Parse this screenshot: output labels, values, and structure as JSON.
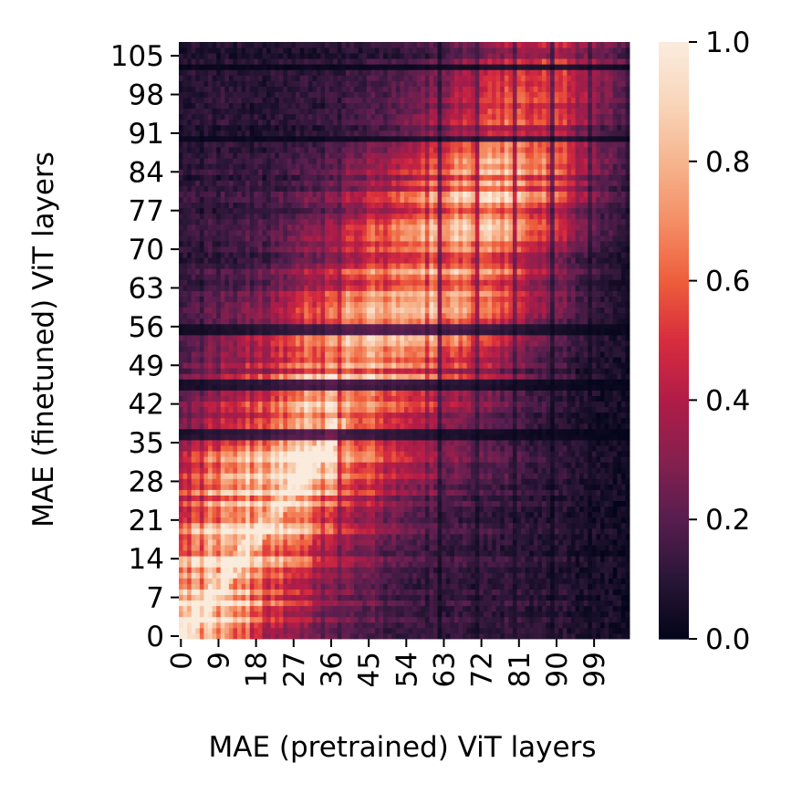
{
  "chart_data": {
    "type": "heatmap",
    "xlabel": "MAE (pretrained) ViT layers",
    "ylabel": "MAE (finetuned) ViT layers",
    "n_cols": 108,
    "n_rows": 108,
    "x_ticks": [
      "0",
      "9",
      "18",
      "27",
      "36",
      "45",
      "54",
      "63",
      "72",
      "81",
      "90",
      "99"
    ],
    "y_ticks": [
      "0",
      "7",
      "14",
      "21",
      "28",
      "35",
      "42",
      "49",
      "56",
      "63",
      "70",
      "77",
      "84",
      "91",
      "98",
      "105"
    ],
    "colorbar": {
      "vmin": 0.0,
      "vmax": 1.0,
      "ticks": [
        "0.0",
        "0.2",
        "0.4",
        "0.6",
        "0.8",
        "1.0"
      ],
      "colormap": "rocket",
      "colors": [
        "#03051a",
        "#2a1636",
        "#571e4f",
        "#86204e",
        "#b11c48",
        "#d72c3e",
        "#ee5d3b",
        "#f48e65",
        "#f6b48e",
        "#f9d5ba",
        "#faebdd"
      ]
    },
    "description_values": {
      "diagonal_early_layers_max": 1.0,
      "mid_layers_peak": 0.75,
      "late_columns_min": 0.05,
      "dark_rows": [
        36,
        37,
        45,
        46,
        55,
        56,
        90,
        103
      ],
      "dark_cols": [
        102,
        103,
        104,
        105,
        106,
        107
      ]
    }
  }
}
